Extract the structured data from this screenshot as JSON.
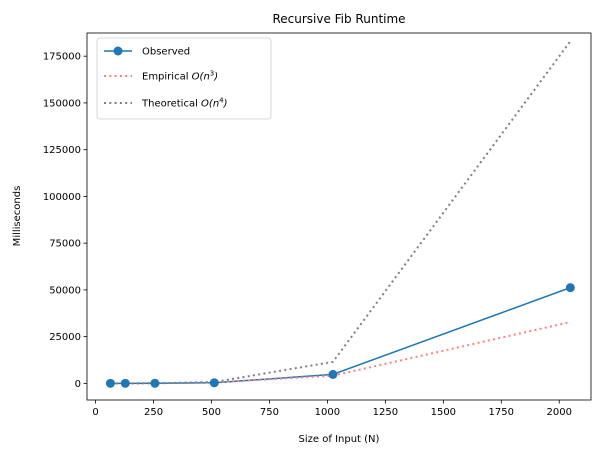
{
  "chart_data": {
    "type": "line",
    "title": "Recursive Fib Runtime",
    "xlabel": "Size of Input (N)",
    "ylabel": "Milliseconds",
    "xlim": [
      -37,
      2137
    ],
    "ylim": [
      -8900,
      187400
    ],
    "xticks": [
      0,
      250,
      500,
      750,
      1000,
      1250,
      1500,
      1750,
      2000
    ],
    "yticks": [
      0,
      25000,
      50000,
      75000,
      100000,
      125000,
      150000,
      175000
    ],
    "grid": false,
    "legend_position": "upper-left",
    "series": [
      {
        "name": "Observed",
        "style": "solid-line-with-markers",
        "color": "#1f77b4",
        "x": [
          64,
          128,
          256,
          512,
          1024,
          2048
        ],
        "y": [
          1,
          5,
          40,
          320,
          4800,
          51200
        ]
      },
      {
        "name": "Empirical $O(n^3)$",
        "style": "dotted",
        "color": "#ff7f7f",
        "x": [
          64,
          128,
          256,
          512,
          1024,
          2048
        ],
        "y": [
          1,
          8,
          63,
          510,
          4100,
          32800
        ]
      },
      {
        "name": "Theoretical $O(n^4)$",
        "style": "dotted",
        "color": "#7f7f7f",
        "x": [
          64,
          128,
          256,
          512,
          1024,
          2048
        ],
        "y": [
          0,
          2,
          45,
          720,
          11500,
          183000
        ]
      }
    ]
  }
}
